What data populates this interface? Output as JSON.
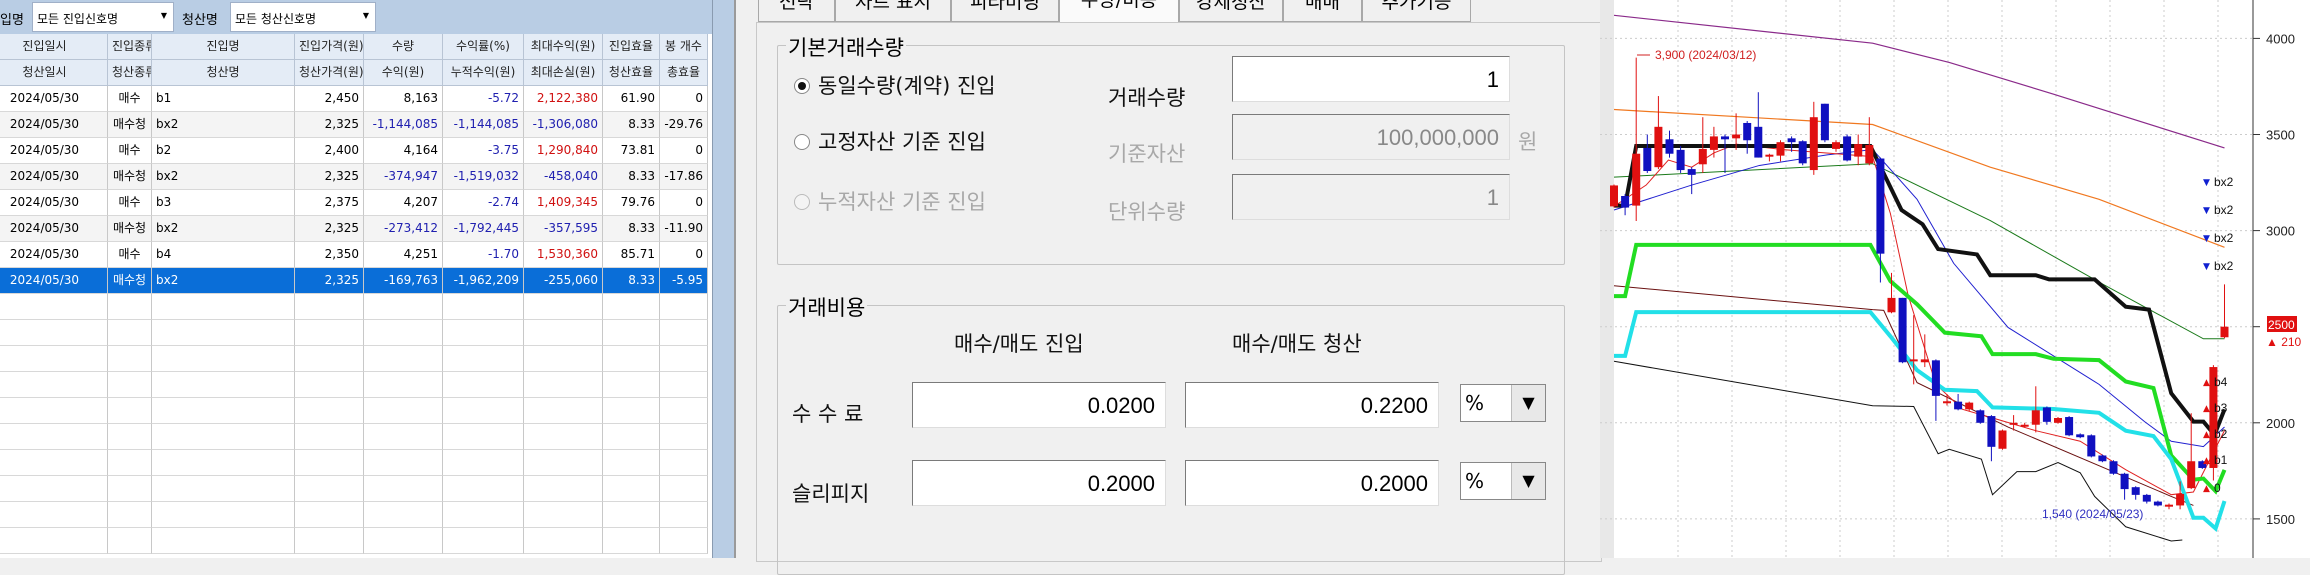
{
  "filters": {
    "entry_label": "입명",
    "entry_value": "모든 진입신호명",
    "exit_label": "청산명",
    "exit_value": "모든 청산신호명"
  },
  "table": {
    "headers1": [
      "진입일시",
      "진입종류",
      "진입명",
      "진입가격(원)",
      "수량",
      "수익률(%)",
      "최대수익(원)",
      "진입효율",
      "봉 개수"
    ],
    "headers2": [
      "청산일시",
      "청산종류",
      "청산명",
      "청산가격(원)",
      "수익(원)",
      "누적수익(원)",
      "최대손실(원)",
      "청산효율",
      "총효율"
    ],
    "rows": [
      [
        "2024/05/30",
        "매수",
        "b1",
        "2,450",
        "8,163",
        "-5.72",
        "2,122,380",
        "61.90",
        "0"
      ],
      [
        "2024/05/30",
        "매수청",
        "bx2",
        "2,325",
        "-1,144,085",
        "-1,144,085",
        "-1,306,080",
        "8.33",
        "-29.76"
      ],
      [
        "2024/05/30",
        "매수",
        "b2",
        "2,400",
        "4,164",
        "-3.75",
        "1,290,840",
        "73.81",
        "0"
      ],
      [
        "2024/05/30",
        "매수청",
        "bx2",
        "2,325",
        "-374,947",
        "-1,519,032",
        "-458,040",
        "8.33",
        "-17.86"
      ],
      [
        "2024/05/30",
        "매수",
        "b3",
        "2,375",
        "4,207",
        "-2.74",
        "1,409,345",
        "79.76",
        "0"
      ],
      [
        "2024/05/30",
        "매수청",
        "bx2",
        "2,325",
        "-273,412",
        "-1,792,445",
        "-357,595",
        "8.33",
        "-11.90"
      ],
      [
        "2024/05/30",
        "매수",
        "b4",
        "2,350",
        "4,251",
        "-1.70",
        "1,530,360",
        "85.71",
        "0"
      ],
      [
        "2024/05/30",
        "매수청",
        "bx2",
        "2,325",
        "-169,763",
        "-1,962,209",
        "-255,060",
        "8.33",
        "-5.95"
      ]
    ],
    "selected_row": 7
  },
  "tabs": [
    "전략",
    "차트 표시",
    "피라미딩",
    "수량/비용",
    "강제청산",
    "매매",
    "추가기능"
  ],
  "active_tab": 3,
  "quantity": {
    "group_title": "기본거래수량",
    "options": [
      {
        "label": "동일수량(계약) 진입",
        "selected": true,
        "enabled": true
      },
      {
        "label": "고정자산 기준 진입",
        "selected": false,
        "enabled": true
      },
      {
        "label": "누적자산 기준 진입",
        "selected": false,
        "enabled": false
      }
    ],
    "trade_qty_label": "거래수량",
    "trade_qty": "1",
    "base_asset_label": "기준자산",
    "base_asset": "100,000,000",
    "base_asset_unit": "원",
    "unit_qty_label": "단위수량",
    "unit_qty": "1"
  },
  "cost": {
    "group_title": "거래비용",
    "col_entry": "매수/매도 진입",
    "col_exit": "매수/매도 청산",
    "commission_label": "수 수 료",
    "commission_entry": "0.0200",
    "commission_exit": "0.2200",
    "commission_unit": "%",
    "slippage_label": "슬리피지",
    "slippage_entry": "0.2000",
    "slippage_exit": "0.2000",
    "slippage_unit": "%"
  },
  "chart_data": {
    "type": "candlestick",
    "y_ticks": [
      4000,
      3500,
      3000,
      2500,
      2000,
      1500
    ],
    "ylim": [
      1300,
      4200
    ],
    "current_price": "2500",
    "change": "▲ 210",
    "high_annotation": "3,900 (2024/03/12)",
    "low_annotation": "1,540 (2024/05/23)",
    "up_color": "#e01010",
    "down_color": "#1010c0",
    "candles": [
      [
        3126,
        3235,
        3240,
        3120
      ],
      [
        3180,
        3120,
        3190,
        3080
      ],
      [
        3130,
        3400,
        3900,
        3050
      ],
      [
        3430,
        3310,
        3500,
        3300
      ],
      [
        3330,
        3540,
        3700,
        3320
      ],
      [
        3475,
        3400,
        3520,
        3380
      ],
      [
        3420,
        3315,
        3440,
        3300
      ],
      [
        3320,
        3290,
        3330,
        3190
      ],
      [
        3345,
        3425,
        3590,
        3300
      ],
      [
        3420,
        3490,
        3540,
        3380
      ],
      [
        3490,
        3475,
        3500,
        3300
      ],
      [
        3480,
        3500,
        3610,
        3420
      ],
      [
        3560,
        3470,
        3570,
        3400
      ],
      [
        3540,
        3380,
        3720,
        3380
      ],
      [
        3385,
        3395,
        3400,
        3360
      ],
      [
        3390,
        3460,
        3470,
        3360
      ],
      [
        3480,
        3460,
        3490,
        3410
      ],
      [
        3465,
        3350,
        3470,
        3340
      ],
      [
        3315,
        3590,
        3670,
        3290
      ],
      [
        3660,
        3470,
        3660,
        3460
      ],
      [
        3425,
        3460,
        3470,
        3410
      ],
      [
        3490,
        3365,
        3500,
        3360
      ],
      [
        3385,
        3450,
        3500,
        3340
      ],
      [
        3350,
        3445,
        3590,
        3340
      ],
      [
        3375,
        2880,
        3380,
        2730
      ],
      [
        2575,
        2650,
        2780,
        2570
      ],
      [
        2650,
        2315,
        2650,
        2310
      ],
      [
        2320,
        2330,
        2560,
        2200
      ],
      [
        2315,
        2330,
        2460,
        2290
      ],
      [
        2325,
        2140,
        2330,
        2010
      ],
      [
        2105,
        2112,
        2150,
        2090
      ],
      [
        2110,
        2070,
        2150,
        2065
      ],
      [
        2070,
        2105,
        2110,
        2060
      ],
      [
        2065,
        2000,
        2070,
        1995
      ],
      [
        2035,
        1875,
        2040,
        1800
      ],
      [
        1865,
        1960,
        1965,
        1860
      ],
      [
        1995,
        2000,
        2040,
        1960
      ],
      [
        1980,
        1990,
        2000,
        1975
      ],
      [
        1990,
        2065,
        2190,
        1950
      ],
      [
        2080,
        2005,
        2085,
        1990
      ],
      [
        2000,
        2025,
        2030,
        1995
      ],
      [
        2030,
        1935,
        2035,
        1930
      ],
      [
        1940,
        1925,
        1945,
        1920
      ],
      [
        1935,
        1825,
        1940,
        1820
      ],
      [
        1830,
        1800,
        1835,
        1795
      ],
      [
        1800,
        1735,
        1805,
        1730
      ],
      [
        1735,
        1655,
        1740,
        1600
      ],
      [
        1665,
        1625,
        1670,
        1600
      ],
      [
        1625,
        1590,
        1630,
        1580
      ],
      [
        1590,
        1570,
        1595,
        1565
      ],
      [
        1568,
        1574,
        1580,
        1550
      ],
      [
        1570,
        1630,
        1695,
        1550
      ],
      [
        1660,
        1800,
        2050,
        1655
      ],
      [
        1800,
        1765,
        1805,
        1760
      ],
      [
        1765,
        2290,
        2300,
        1700
      ],
      [
        2445,
        2500,
        2720,
        2440
      ]
    ],
    "lines": [
      {
        "color": "#8a2a8a",
        "width": 1.2,
        "points": [
          [
            0,
            4120
          ],
          [
            23.3,
            3975
          ],
          [
            30.2,
            3875
          ],
          [
            39.6,
            3710
          ],
          [
            55,
            3430
          ]
        ]
      },
      {
        "color": "#f07820",
        "width": 1.2,
        "points": [
          [
            0,
            3630
          ],
          [
            23.3,
            3552
          ],
          [
            33.9,
            3330
          ],
          [
            43.7,
            3163
          ],
          [
            55,
            2913
          ]
        ]
      },
      {
        "color": "#1a7a1a",
        "width": 1,
        "points": [
          [
            0,
            3278
          ],
          [
            23.3,
            3348
          ],
          [
            33.9,
            3052
          ],
          [
            44.1,
            2719
          ],
          [
            53.1,
            2437
          ],
          [
            55,
            2437
          ]
        ]
      },
      {
        "color": "#6a1010",
        "width": 1,
        "points": [
          [
            0,
            2713
          ],
          [
            23.3,
            2589
          ],
          [
            24.3,
            2585
          ],
          [
            27.3,
            2209
          ],
          [
            35.5,
            1978
          ],
          [
            50.2,
            1617
          ],
          [
            52.2,
            1570
          ]
        ]
      },
      {
        "color": "#111111",
        "width": 1,
        "points": [
          [
            0,
            2320
          ],
          [
            23.3,
            2089
          ],
          [
            27,
            2085
          ],
          [
            29.2,
            1839
          ],
          [
            30.2,
            1862
          ],
          [
            33.1,
            1811
          ],
          [
            34.1,
            1626
          ],
          [
            36.3,
            1746
          ],
          [
            38,
            1746
          ],
          [
            40,
            1793
          ],
          [
            42,
            1740
          ],
          [
            43.3,
            1617
          ],
          [
            46.1,
            1459
          ],
          [
            50.2,
            1385
          ],
          [
            51.2,
            1390
          ]
        ]
      },
      {
        "color": "#2020d0",
        "width": 1,
        "points": [
          [
            0,
            3107
          ],
          [
            7,
            3237
          ],
          [
            13.1,
            3339
          ],
          [
            19.2,
            3394
          ],
          [
            23.3,
            3422
          ],
          [
            27.3,
            3163
          ],
          [
            30.6,
            2830
          ],
          [
            35.5,
            2496
          ],
          [
            39.6,
            2348
          ],
          [
            43.7,
            2200
          ],
          [
            47.8,
            2006
          ],
          [
            50.2,
            1904
          ],
          [
            53.1,
            1876
          ],
          [
            55,
            1978
          ]
        ]
      },
      {
        "color": "#e02020",
        "width": 1,
        "points": [
          [
            0,
            3126
          ],
          [
            2.9,
            3237
          ],
          [
            4.9,
            3367
          ],
          [
            7,
            3330
          ],
          [
            9,
            3404
          ],
          [
            11,
            3450
          ],
          [
            15.1,
            3422
          ],
          [
            23.3,
            3385
          ],
          [
            24.9,
            3089
          ],
          [
            26.5,
            2663
          ],
          [
            29,
            2200
          ],
          [
            31.4,
            2070
          ],
          [
            34.7,
            2015
          ],
          [
            38,
            1959
          ],
          [
            42,
            1904
          ],
          [
            46.1,
            1756
          ],
          [
            50.2,
            1626
          ],
          [
            52.2,
            1640
          ],
          [
            55,
            1960
          ]
        ]
      },
      {
        "color": "#111111",
        "width": 4,
        "points": [
          [
            0,
            3130
          ],
          [
            1,
            3130
          ],
          [
            2,
            3440
          ],
          [
            23.1,
            3440
          ],
          [
            25.9,
            3107
          ],
          [
            27.8,
            3033
          ],
          [
            29.2,
            2904
          ],
          [
            32.7,
            2876
          ],
          [
            33.9,
            2768
          ],
          [
            38,
            2768
          ],
          [
            39.2,
            2746
          ],
          [
            43.3,
            2746
          ],
          [
            46.1,
            2604
          ],
          [
            48.2,
            2589
          ],
          [
            50.2,
            2154
          ],
          [
            52.2,
            2006
          ],
          [
            53.1,
            2006
          ],
          [
            54.1,
            1937
          ],
          [
            55,
            2070
          ]
        ]
      },
      {
        "color": "#22dd22",
        "width": 4,
        "points": [
          [
            0,
            2659
          ],
          [
            1,
            2659
          ],
          [
            2,
            2926
          ],
          [
            23.1,
            2926
          ],
          [
            24.9,
            2737
          ],
          [
            27.3,
            2617
          ],
          [
            29.8,
            2469
          ],
          [
            33.1,
            2450
          ],
          [
            34.1,
            2357
          ],
          [
            38,
            2357
          ],
          [
            39.6,
            2333
          ],
          [
            43.7,
            2326
          ],
          [
            46.1,
            2215
          ],
          [
            48.6,
            2181
          ],
          [
            50.2,
            1830
          ],
          [
            52.2,
            1704
          ],
          [
            53.1,
            1710
          ],
          [
            54.2,
            1644
          ],
          [
            55,
            1755
          ]
        ]
      },
      {
        "color": "#22e0e8",
        "width": 4,
        "points": [
          [
            0,
            2348
          ],
          [
            1,
            2348
          ],
          [
            2,
            2576
          ],
          [
            23.1,
            2576
          ],
          [
            24.9,
            2450
          ],
          [
            27.3,
            2274
          ],
          [
            29.8,
            2172
          ],
          [
            32.7,
            2165
          ],
          [
            34.1,
            2080
          ],
          [
            39.6,
            2072
          ],
          [
            43.7,
            2052
          ],
          [
            46.1,
            1959
          ],
          [
            48.6,
            1931
          ],
          [
            50.2,
            1811
          ],
          [
            52.2,
            1506
          ],
          [
            53.1,
            1506
          ],
          [
            54.2,
            1450
          ],
          [
            55,
            1593
          ]
        ]
      }
    ],
    "signals": [
      "bx2",
      "bx2",
      "bx2",
      "bx2",
      "b4",
      "b3",
      "b2",
      "b1",
      "0"
    ]
  }
}
